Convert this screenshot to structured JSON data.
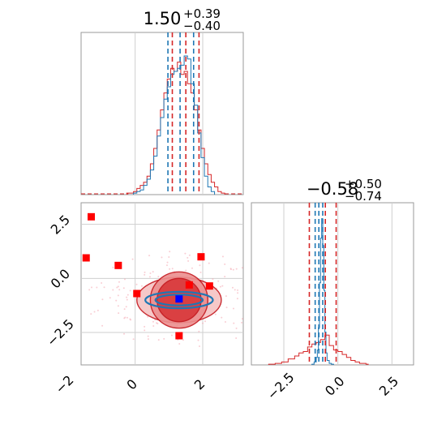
{
  "chart_data": [
    {
      "type": "histogram",
      "panel": "marginal-param-1",
      "title": {
        "value": "1.50",
        "upper": "+0.39",
        "lower": "−0.40"
      },
      "xlim": [
        -1.6,
        3.2
      ],
      "grid": true,
      "series": [
        {
          "color": "#d62728",
          "bins_x": [
            -0.2,
            -0.1,
            0.0,
            0.1,
            0.2,
            0.3,
            0.4,
            0.5,
            0.6,
            0.7,
            0.8,
            0.9,
            1.0,
            1.1,
            1.2,
            1.3,
            1.4,
            1.5,
            1.6,
            1.7,
            1.8,
            1.9,
            2.0,
            2.1,
            2.2,
            2.3,
            2.4,
            2.5,
            2.6
          ],
          "density": [
            0.01,
            0.01,
            0.02,
            0.04,
            0.06,
            0.08,
            0.12,
            0.2,
            0.3,
            0.42,
            0.55,
            0.66,
            0.75,
            0.82,
            0.8,
            0.86,
            0.78,
            0.8,
            0.72,
            0.66,
            0.55,
            0.42,
            0.3,
            0.2,
            0.13,
            0.08,
            0.05,
            0.02,
            0.01
          ],
          "quantiles": [
            1.1,
            1.5,
            1.89
          ]
        },
        {
          "color": "#1f77b4",
          "bins_x": [
            0.0,
            0.1,
            0.2,
            0.3,
            0.4,
            0.5,
            0.6,
            0.7,
            0.8,
            0.9,
            1.0,
            1.1,
            1.2,
            1.3,
            1.4,
            1.5,
            1.6,
            1.7,
            1.8,
            1.9,
            2.0,
            2.1,
            2.2,
            2.3
          ],
          "density": [
            0.01,
            0.02,
            0.03,
            0.06,
            0.1,
            0.16,
            0.25,
            0.38,
            0.5,
            0.62,
            0.7,
            0.78,
            0.8,
            0.82,
            0.84,
            0.9,
            0.88,
            0.72,
            0.58,
            0.4,
            0.24,
            0.12,
            0.05,
            0.02
          ],
          "quantiles": [
            0.97,
            1.33,
            1.73
          ]
        }
      ]
    },
    {
      "type": "contour-scatter",
      "panel": "joint",
      "xlim": [
        -1.6,
        3.2
      ],
      "ylim": [
        -4.0,
        3.5
      ],
      "xticks": [
        "−2",
        "0",
        "2"
      ],
      "yticks": [
        "2.5",
        "0.0",
        "−2.5"
      ],
      "grid": true,
      "red_contours": {
        "center": [
          1.3,
          -1.0
        ],
        "levels": [
          [
            1.25,
            1.05
          ],
          [
            0.85,
            1.3
          ],
          [
            0.65,
            1.0
          ]
        ]
      },
      "blue_contours": {
        "center": [
          1.3,
          -1.0
        ],
        "levels": [
          [
            1.0,
            0.38
          ],
          [
            0.7,
            0.25
          ]
        ]
      },
      "red_markers": [
        {
          "x": -1.3,
          "y": 2.85
        },
        {
          "x": -1.45,
          "y": 0.95
        },
        {
          "x": -0.5,
          "y": 0.6
        },
        {
          "x": 1.95,
          "y": 1.0
        },
        {
          "x": 1.6,
          "y": -0.3
        },
        {
          "x": 2.2,
          "y": -0.35
        },
        {
          "x": 0.05,
          "y": -0.7
        },
        {
          "x": 1.3,
          "y": -2.65
        }
      ],
      "blue_marker": {
        "x": 1.3,
        "y": -0.95
      }
    },
    {
      "type": "histogram",
      "panel": "marginal-param-2",
      "title": {
        "value": "−0.58",
        "upper": "+0.50",
        "lower": "−0.74"
      },
      "xlim": [
        -4.0,
        3.5
      ],
      "xticks": [
        "−2.5",
        "0.0",
        "2.5"
      ],
      "grid": true,
      "series": [
        {
          "color": "#d62728",
          "bins_x": [
            -3.2,
            -2.9,
            -2.6,
            -2.3,
            -2.0,
            -1.8,
            -1.6,
            -1.4,
            -1.2,
            -1.0,
            -0.8,
            -0.6,
            -0.4,
            -0.2,
            0.0,
            0.2,
            0.4,
            0.6,
            0.8,
            1.0,
            1.3
          ],
          "density": [
            0.005,
            0.01,
            0.02,
            0.04,
            0.06,
            0.08,
            0.09,
            0.12,
            0.14,
            0.15,
            0.17,
            0.2,
            0.13,
            0.1,
            0.09,
            0.07,
            0.05,
            0.03,
            0.02,
            0.01,
            0.005
          ],
          "quantiles": [
            -1.32,
            -0.58,
            -0.08
          ]
        },
        {
          "color": "#1f77b4",
          "bins_x": [
            -1.2,
            -1.1,
            -1.0,
            -0.95,
            -0.9,
            -0.85,
            -0.8,
            -0.75,
            -0.7,
            -0.65,
            -0.6,
            -0.55,
            -0.5,
            -0.4,
            -0.3
          ],
          "density": [
            0.005,
            0.02,
            0.05,
            0.1,
            0.25,
            0.55,
            0.85,
            0.98,
            0.8,
            0.5,
            0.22,
            0.08,
            0.03,
            0.01,
            0.005
          ],
          "quantiles": [
            -1.05,
            -0.88,
            -0.7
          ]
        }
      ]
    }
  ]
}
